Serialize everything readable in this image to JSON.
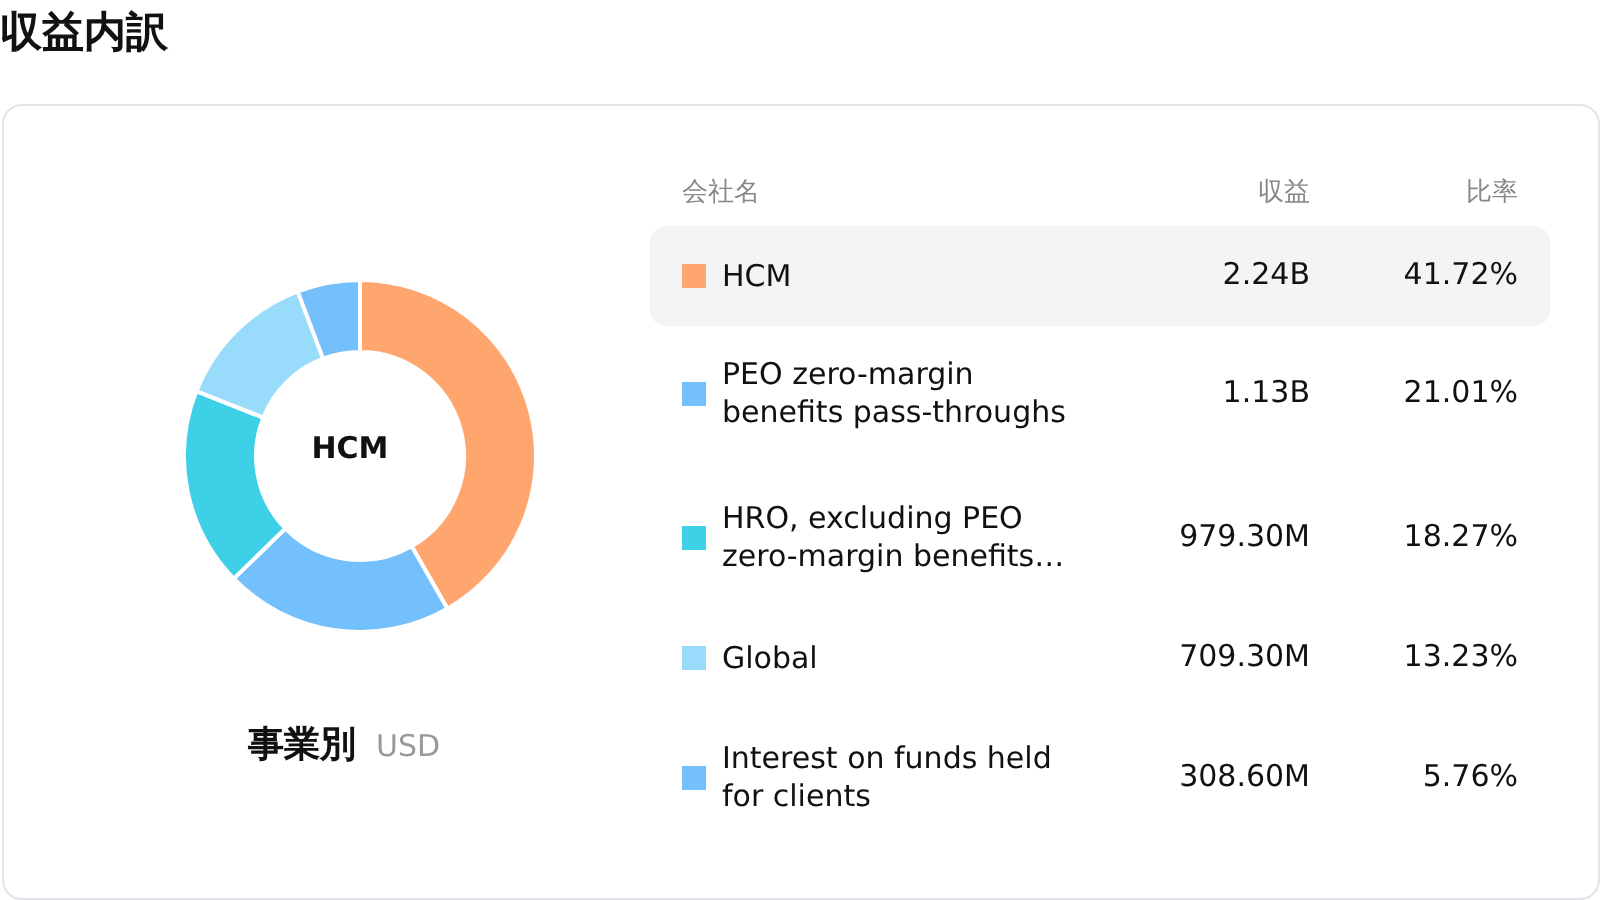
{
  "chart_data": {
    "type": "donut",
    "title": "収益内訳",
    "subtitle": "事業別",
    "categories": [
      "HCM",
      "PEO zero-margin benefits pass-throughs",
      "HRO, excluding PEO zero-margin benefits…",
      "Global",
      "Interest on funds held for clients"
    ],
    "values": [
      41.72,
      21.01,
      18.27,
      13.23,
      5.76
    ],
    "value_labels": [
      "41.72%",
      "21.01%",
      "18.27%",
      "13.23%",
      "5.76%"
    ],
    "colors": [
      "#ffa56e",
      "#74c0fc",
      "#3ed0e6",
      "#99dbfb",
      "#74c0fc"
    ],
    "annotations": [
      "会社名",
      "収益",
      "比率",
      "USD",
      {
        "text": "2.24B",
        "x": "HCM"
      },
      {
        "text": "1.13B",
        "x": "PEO zero-margin benefits pass-throughs"
      },
      {
        "text": "979.30M",
        "x": "HRO, excluding PEO zero-margin benefits…"
      },
      {
        "text": "709.30M",
        "x": "Global"
      },
      {
        "text": "308.60M",
        "x": "Interest on funds held for clients"
      }
    ],
    "legend": "right"
  }
}
